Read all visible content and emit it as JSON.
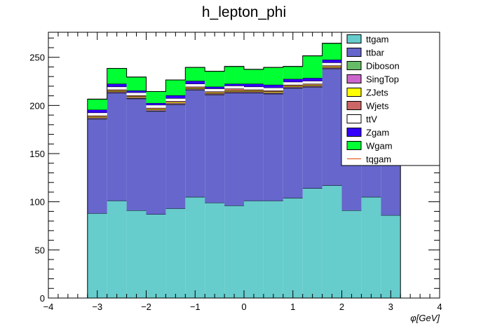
{
  "chart_data": {
    "type": "bar",
    "stacked": true,
    "title": "h_lepton_phi",
    "xlabel": "φ[GeV]",
    "ylabel": "",
    "xlim": [
      -4,
      4
    ],
    "ylim": [
      0,
      276
    ],
    "xticks": [
      -4,
      -3,
      -2,
      -1,
      0,
      1,
      2,
      3,
      4
    ],
    "yticks": [
      0,
      50,
      100,
      150,
      200,
      250
    ],
    "grid": false,
    "legend_position": "top-right",
    "bin_edges": [
      -3.2,
      -2.8,
      -2.4,
      -2.0,
      -1.6,
      -1.2,
      -0.8,
      -0.4,
      0.0,
      0.4,
      0.8,
      1.2,
      1.6,
      2.0,
      2.4,
      2.8,
      3.2
    ],
    "series": [
      {
        "name": "ttgam",
        "color": "#66cccc",
        "values": [
          88,
          101,
          91,
          87,
          93,
          105,
          99,
          96,
          101,
          101,
          104,
          114,
          117,
          91,
          105,
          86
        ]
      },
      {
        "name": "ttbar",
        "color": "#6666cc",
        "values": [
          98,
          112,
          116,
          107,
          108,
          111,
          112,
          117,
          112,
          111,
          114,
          105,
          121,
          121,
          106,
          98
        ]
      },
      {
        "name": "Diboson",
        "color": "#66bb66",
        "values": [
          0.5,
          0.5,
          0.5,
          0.5,
          0.5,
          0.5,
          0.5,
          0.5,
          0.5,
          0.5,
          0.5,
          0.5,
          0.5,
          0.5,
          0.5,
          0.5
        ]
      },
      {
        "name": "SingTop",
        "color": "#cc66cc",
        "values": [
          1,
          1,
          1,
          1,
          1,
          1,
          1,
          1,
          1,
          1,
          1,
          1,
          1,
          1,
          1,
          1
        ]
      },
      {
        "name": "ZJets",
        "color": "#ffff00",
        "values": [
          1,
          1,
          1,
          1,
          1,
          1,
          1,
          1,
          1,
          1,
          1,
          1,
          1,
          1,
          1,
          1
        ]
      },
      {
        "name": "Wjets",
        "color": "#cc6666",
        "values": [
          1,
          1,
          1,
          1,
          1,
          1,
          1,
          2,
          1,
          1,
          1,
          1,
          1,
          1,
          1,
          1
        ]
      },
      {
        "name": "ttV",
        "color": "#ffffff",
        "values": [
          3,
          3,
          3,
          3,
          3,
          3,
          3,
          3,
          3,
          3,
          3,
          3,
          3,
          3,
          3,
          3
        ]
      },
      {
        "name": "Zgam",
        "color": "#3300ff",
        "values": [
          3,
          3,
          2,
          2,
          3,
          3,
          2,
          2,
          3,
          3,
          3,
          3,
          3,
          3,
          3,
          3
        ]
      },
      {
        "name": "Wgam",
        "color": "#00ff33",
        "values": [
          11,
          16,
          14,
          12,
          16,
          14,
          16,
          18,
          15,
          18,
          13,
          23,
          17,
          19,
          13,
          12
        ]
      },
      {
        "name": "tqgam",
        "color": "#dd4400",
        "values": [
          0,
          0,
          0,
          0,
          0,
          0,
          0,
          0,
          0,
          0,
          0,
          0,
          0,
          0,
          0,
          0
        ]
      }
    ]
  }
}
